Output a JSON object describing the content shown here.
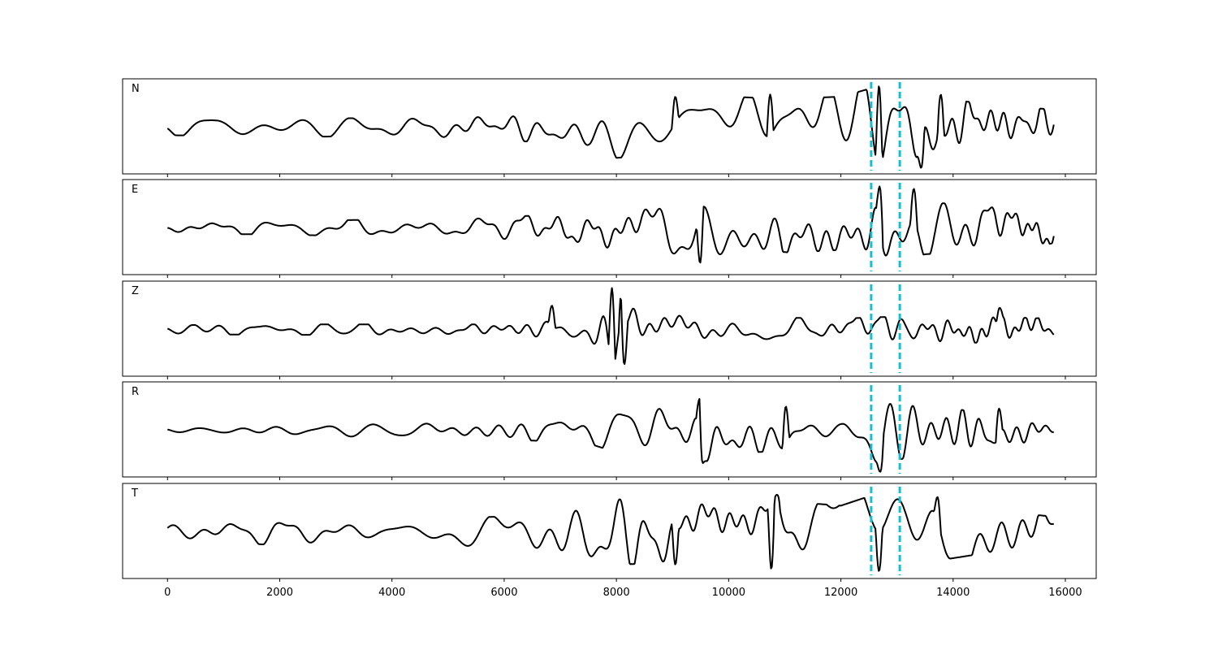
{
  "chart_data": {
    "type": "line",
    "subplots": 5,
    "shared_x": true,
    "xlim": [
      -800,
      16550
    ],
    "xticks": [
      0,
      2000,
      4000,
      6000,
      8000,
      10000,
      12000,
      14000,
      16000
    ],
    "xtick_labels": [
      "0",
      "2000",
      "4000",
      "6000",
      "8000",
      "10000",
      "12000",
      "14000",
      "16000"
    ],
    "x_range": [
      0,
      15800
    ],
    "yticks_visible": false,
    "grid": false,
    "trace_color": "#000000",
    "marker_color": "#17becf",
    "vertical_markers": [
      12540,
      13050
    ],
    "panels": [
      {
        "label": "N",
        "envelope": [
          [
            0,
            0.18
          ],
          [
            2000,
            0.22
          ],
          [
            4000,
            0.2
          ],
          [
            6000,
            0.28
          ],
          [
            7500,
            0.45
          ],
          [
            8000,
            0.7
          ],
          [
            9000,
            0.6
          ],
          [
            10000,
            0.7
          ],
          [
            11000,
            0.65
          ],
          [
            12000,
            0.7
          ],
          [
            12700,
            0.95
          ],
          [
            13500,
            0.7
          ],
          [
            14500,
            0.55
          ],
          [
            15800,
            0.4
          ]
        ],
        "peaks": [
          [
            12680,
            0.95
          ],
          [
            13430,
            -0.93
          ],
          [
            13780,
            0.75
          ],
          [
            10740,
            0.75
          ],
          [
            9050,
            0.7
          ]
        ],
        "seed": 11
      },
      {
        "label": "E",
        "envelope": [
          [
            0,
            0.12
          ],
          [
            2000,
            0.15
          ],
          [
            4000,
            0.2
          ],
          [
            6000,
            0.25
          ],
          [
            7500,
            0.35
          ],
          [
            8000,
            0.5
          ],
          [
            9000,
            0.6
          ],
          [
            9500,
            0.8
          ],
          [
            10500,
            0.6
          ],
          [
            12000,
            0.5
          ],
          [
            12700,
            0.85
          ],
          [
            13500,
            0.6
          ],
          [
            14500,
            0.5
          ],
          [
            15800,
            0.35
          ]
        ],
        "peaks": [
          [
            9490,
            -0.8
          ],
          [
            12690,
            0.95
          ],
          [
            13300,
            0.9
          ],
          [
            11000,
            -0.55
          ]
        ],
        "seed": 23
      },
      {
        "label": "Z",
        "envelope": [
          [
            0,
            0.1
          ],
          [
            2000,
            0.12
          ],
          [
            4000,
            0.12
          ],
          [
            6000,
            0.12
          ],
          [
            6700,
            0.25
          ],
          [
            7500,
            0.35
          ],
          [
            8000,
            0.9
          ],
          [
            8500,
            0.4
          ],
          [
            10000,
            0.3
          ],
          [
            12000,
            0.25
          ],
          [
            13000,
            0.3
          ],
          [
            14500,
            0.3
          ],
          [
            15800,
            0.25
          ]
        ],
        "peaks": [
          [
            7920,
            0.95
          ],
          [
            8100,
            0.95
          ],
          [
            8140,
            -0.8
          ],
          [
            6850,
            0.55
          ],
          [
            14830,
            0.5
          ]
        ],
        "seed": 37
      },
      {
        "label": "R",
        "envelope": [
          [
            0,
            0.08
          ],
          [
            2000,
            0.1
          ],
          [
            4000,
            0.18
          ],
          [
            6000,
            0.2
          ],
          [
            7500,
            0.3
          ],
          [
            8000,
            0.5
          ],
          [
            9000,
            0.55
          ],
          [
            9500,
            0.75
          ],
          [
            10500,
            0.5
          ],
          [
            12000,
            0.35
          ],
          [
            12700,
            0.8
          ],
          [
            13500,
            0.5
          ],
          [
            14500,
            0.45
          ],
          [
            15800,
            0.3
          ]
        ],
        "peaks": [
          [
            9480,
            0.72
          ],
          [
            9540,
            -0.75
          ],
          [
            12700,
            -0.95
          ],
          [
            11020,
            0.55
          ],
          [
            14820,
            0.5
          ]
        ],
        "seed": 51
      },
      {
        "label": "T",
        "envelope": [
          [
            0,
            0.2
          ],
          [
            2000,
            0.3
          ],
          [
            4000,
            0.3
          ],
          [
            6000,
            0.35
          ],
          [
            7500,
            0.55
          ],
          [
            8000,
            0.75
          ],
          [
            9000,
            0.7
          ],
          [
            10000,
            0.75
          ],
          [
            11000,
            0.7
          ],
          [
            12000,
            0.6
          ],
          [
            12700,
            0.9
          ],
          [
            13500,
            0.7
          ],
          [
            14500,
            0.5
          ],
          [
            15800,
            0.35
          ]
        ],
        "peaks": [
          [
            10760,
            -0.85
          ],
          [
            10860,
            0.85
          ],
          [
            12680,
            -0.9
          ],
          [
            13720,
            0.8
          ],
          [
            9050,
            -0.75
          ]
        ],
        "seed": 67
      }
    ]
  }
}
